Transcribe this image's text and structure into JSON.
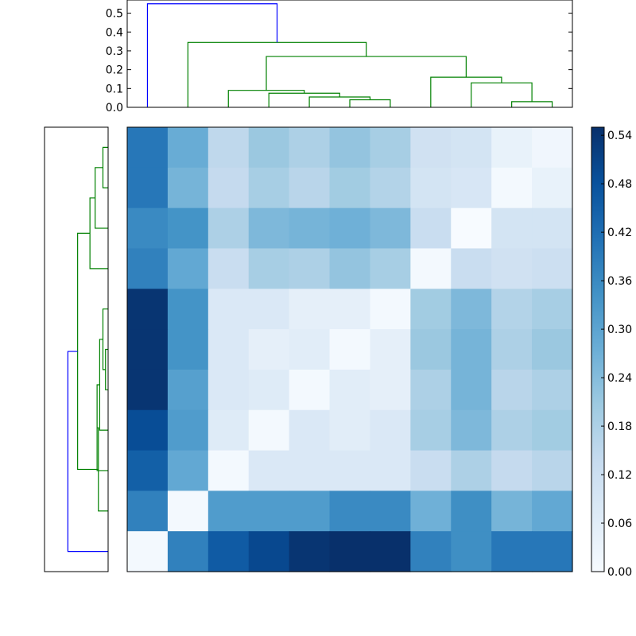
{
  "chart_data": [
    {
      "type": "dendrogram",
      "orientation": "top",
      "yticks": [
        "0.0",
        "0.1",
        "0.2",
        "0.3",
        "0.4",
        "0.5"
      ],
      "ylim": [
        0,
        0.57
      ],
      "leaf_count": 11,
      "colors": {
        "cluster": "#008000",
        "root": "#0000ff"
      },
      "links": [
        {
          "left": 9,
          "right": 10,
          "height": 0.03,
          "color": "#008000",
          "left_h": 0,
          "right_h": 0
        },
        {
          "left": 8,
          "right": 9.5,
          "height": 0.13,
          "color": "#008000",
          "left_h": 0,
          "right_h": 0.03
        },
        {
          "left": 7,
          "right": 8.75,
          "height": 0.16,
          "color": "#008000",
          "left_h": 0,
          "right_h": 0.13
        },
        {
          "left": 5,
          "right": 6,
          "height": 0.04,
          "color": "#008000",
          "left_h": 0,
          "right_h": 0
        },
        {
          "left": 4,
          "right": 5.5,
          "height": 0.055,
          "color": "#008000",
          "left_h": 0,
          "right_h": 0.04
        },
        {
          "left": 3,
          "right": 4.75,
          "height": 0.075,
          "color": "#008000",
          "left_h": 0,
          "right_h": 0.055
        },
        {
          "left": 2,
          "right": 3.875,
          "height": 0.09,
          "color": "#008000",
          "left_h": 0,
          "right_h": 0.075
        },
        {
          "left": 2.9375,
          "right": 7.875,
          "height": 0.27,
          "color": "#008000",
          "left_h": 0.09,
          "right_h": 0.16
        },
        {
          "left": 1,
          "right": 5.40625,
          "height": 0.345,
          "color": "#008000",
          "left_h": 0,
          "right_h": 0.27
        },
        {
          "left": 0,
          "right": 3.203,
          "height": 0.55,
          "color": "#0000ff",
          "left_h": 0,
          "right_h": 0.345
        }
      ]
    },
    {
      "type": "dendrogram",
      "orientation": "left",
      "leaf_count": 11,
      "links": [
        {
          "a": 0,
          "b": 1,
          "depth": 0.08,
          "color": "#008000",
          "a_d": 0,
          "b_d": 0
        },
        {
          "a": 0.5,
          "b": 2,
          "depth": 0.2,
          "color": "#008000",
          "a_d": 0.08,
          "b_d": 0
        },
        {
          "a": 1.25,
          "b": 3,
          "depth": 0.28,
          "color": "#008000",
          "a_d": 0.2,
          "b_d": 0
        },
        {
          "a": 5,
          "b": 6,
          "depth": 0.04,
          "color": "#008000",
          "a_d": 0,
          "b_d": 0
        },
        {
          "a": 4,
          "b": 5.5,
          "depth": 0.08,
          "color": "#008000",
          "a_d": 0,
          "b_d": 0.04
        },
        {
          "a": 4.75,
          "b": 7,
          "depth": 0.13,
          "color": "#008000",
          "a_d": 0.08,
          "b_d": 0
        },
        {
          "a": 5.875,
          "b": 8,
          "depth": 0.17,
          "color": "#008000",
          "a_d": 0.13,
          "b_d": 0
        },
        {
          "a": 6.94,
          "b": 9,
          "depth": 0.15,
          "color": "#008000",
          "a_d": 0.17,
          "b_d": 0
        },
        {
          "a": 2.125,
          "b": 7.97,
          "depth": 0.47,
          "color": "#008000",
          "a_d": 0.28,
          "b_d": 0.15
        },
        {
          "a": 5.05,
          "b": 10,
          "depth": 0.62,
          "color": "#0000ff",
          "a_d": 0.47,
          "b_d": 0
        }
      ],
      "max_depth": 0.98
    },
    {
      "type": "heatmap",
      "rows": 11,
      "cols": 11,
      "colormap": [
        "#f7fbff",
        "#deebf7",
        "#c6dbef",
        "#9ecae1",
        "#6baed6",
        "#4292c6",
        "#2171b5",
        "#08519c",
        "#08306b"
      ],
      "vmin": 0,
      "vmax": 0.55,
      "values": [
        [
          0.4,
          0.28,
          0.15,
          0.21,
          0.18,
          0.22,
          0.19,
          0.11,
          0.1,
          0.04,
          0.02
        ],
        [
          0.4,
          0.26,
          0.14,
          0.19,
          0.16,
          0.2,
          0.17,
          0.1,
          0.09,
          0.01,
          0.04
        ],
        [
          0.36,
          0.34,
          0.18,
          0.25,
          0.26,
          0.27,
          0.25,
          0.13,
          0.0,
          0.1,
          0.1
        ],
        [
          0.38,
          0.29,
          0.13,
          0.19,
          0.18,
          0.22,
          0.19,
          0.01,
          0.13,
          0.11,
          0.12
        ],
        [
          0.54,
          0.34,
          0.08,
          0.08,
          0.05,
          0.05,
          0.01,
          0.2,
          0.25,
          0.17,
          0.19
        ],
        [
          0.54,
          0.34,
          0.08,
          0.05,
          0.06,
          0.01,
          0.05,
          0.21,
          0.26,
          0.18,
          0.21
        ],
        [
          0.54,
          0.31,
          0.08,
          0.07,
          0.01,
          0.06,
          0.05,
          0.18,
          0.26,
          0.16,
          0.18
        ],
        [
          0.49,
          0.32,
          0.07,
          0.01,
          0.08,
          0.06,
          0.08,
          0.19,
          0.25,
          0.18,
          0.2
        ],
        [
          0.45,
          0.29,
          0.01,
          0.08,
          0.08,
          0.08,
          0.08,
          0.13,
          0.18,
          0.14,
          0.16
        ],
        [
          0.38,
          0.01,
          0.32,
          0.32,
          0.32,
          0.36,
          0.36,
          0.27,
          0.35,
          0.26,
          0.29
        ],
        [
          0.01,
          0.38,
          0.46,
          0.5,
          0.54,
          0.55,
          0.55,
          0.38,
          0.35,
          0.4,
          0.4
        ]
      ]
    },
    {
      "type": "colorbar",
      "ticks": [
        "0.54",
        "0.48",
        "0.42",
        "0.36",
        "0.30",
        "0.24",
        "0.18",
        "0.12",
        "0.06",
        "0.00"
      ],
      "vmin": 0,
      "vmax": 0.55
    }
  ]
}
